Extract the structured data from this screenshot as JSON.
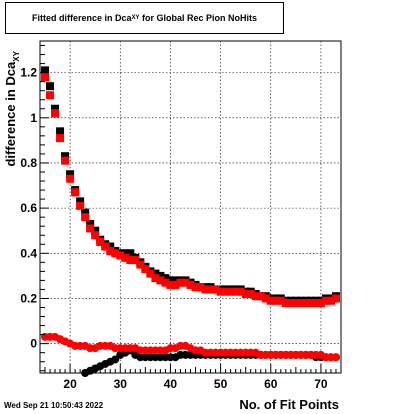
{
  "title": {
    "main": "Fitted difference in Dca",
    "sub": "XY",
    "suffix": " for Global Rec Pion NoHits"
  },
  "xlabel": "No. of Fit Points",
  "ylabel": {
    "main": "difference in Dca",
    "sub": "XY"
  },
  "timestamp": "Wed Sep 21 10:50:43 2022",
  "chart_data": {
    "type": "scatter",
    "xlim": [
      14,
      74
    ],
    "ylim": [
      -0.13,
      1.34
    ],
    "xticks": [
      20,
      30,
      40,
      50,
      60,
      70
    ],
    "yticks": [
      0,
      0.2,
      0.4,
      0.6,
      0.8,
      1,
      1.2
    ],
    "ytick_labels": [
      "0",
      "0.2",
      "0.4",
      "0.6",
      "0.8",
      "1",
      "1.2"
    ],
    "grid": true,
    "x": [
      15,
      16,
      17,
      18,
      19,
      20,
      21,
      22,
      23,
      24,
      25,
      26,
      27,
      28,
      29,
      30,
      31,
      32,
      33,
      34,
      35,
      36,
      37,
      38,
      39,
      40,
      41,
      42,
      43,
      44,
      45,
      46,
      47,
      48,
      49,
      50,
      51,
      52,
      53,
      54,
      55,
      56,
      57,
      58,
      59,
      60,
      61,
      62,
      63,
      64,
      65,
      66,
      67,
      68,
      69,
      70,
      71,
      72,
      73
    ],
    "series": [
      {
        "marker": "square",
        "color": "#000000",
        "values": [
          1.21,
          1.14,
          1.04,
          0.94,
          0.83,
          0.75,
          0.68,
          0.63,
          0.58,
          0.53,
          0.5,
          0.46,
          0.44,
          0.43,
          0.41,
          0.4,
          0.4,
          0.4,
          0.38,
          0.36,
          0.34,
          0.32,
          0.31,
          0.3,
          0.29,
          0.28,
          0.28,
          0.28,
          0.28,
          0.27,
          0.26,
          0.25,
          0.25,
          0.25,
          0.24,
          0.24,
          0.24,
          0.24,
          0.24,
          0.24,
          0.23,
          0.23,
          0.22,
          0.21,
          0.21,
          0.2,
          0.2,
          0.2,
          0.19,
          0.19,
          0.19,
          0.19,
          0.19,
          0.19,
          0.19,
          0.19,
          0.2,
          0.2,
          0.21
        ]
      },
      {
        "marker": "square",
        "color": "#ff0000",
        "values": [
          1.18,
          1.1,
          1.02,
          0.91,
          0.81,
          0.73,
          0.67,
          0.61,
          0.56,
          0.51,
          0.48,
          0.45,
          0.43,
          0.41,
          0.4,
          0.39,
          0.38,
          0.37,
          0.37,
          0.35,
          0.33,
          0.31,
          0.29,
          0.28,
          0.27,
          0.26,
          0.26,
          0.27,
          0.27,
          0.26,
          0.25,
          0.25,
          0.24,
          0.24,
          0.24,
          0.23,
          0.23,
          0.23,
          0.23,
          0.23,
          0.22,
          0.22,
          0.21,
          0.21,
          0.2,
          0.19,
          0.19,
          0.19,
          0.18,
          0.18,
          0.18,
          0.18,
          0.18,
          0.18,
          0.18,
          0.18,
          0.19,
          0.19,
          0.2
        ]
      },
      {
        "marker": "circle",
        "color": "#000000",
        "values": [
          null,
          null,
          null,
          null,
          null,
          null,
          null,
          null,
          -0.13,
          -0.12,
          -0.11,
          -0.1,
          -0.09,
          -0.08,
          -0.07,
          -0.05,
          -0.04,
          -0.03,
          -0.05,
          -0.06,
          -0.06,
          -0.06,
          -0.06,
          -0.06,
          -0.06,
          -0.06,
          -0.06,
          -0.05,
          -0.05,
          -0.05,
          -0.05,
          -0.05,
          -0.05,
          -0.05,
          -0.05,
          -0.05,
          -0.05,
          -0.05,
          -0.05,
          -0.05,
          -0.05,
          -0.05,
          -0.05,
          -0.05,
          -0.05,
          -0.05,
          -0.05,
          -0.05,
          -0.05,
          -0.05,
          -0.05,
          -0.05,
          -0.05,
          -0.05,
          -0.06,
          -0.06,
          -0.06,
          -0.06,
          -0.06
        ]
      },
      {
        "marker": "circle",
        "color": "#ff0000",
        "values": [
          0.03,
          0.03,
          0.03,
          0.02,
          0.01,
          0.0,
          -0.01,
          -0.01,
          -0.01,
          -0.02,
          -0.02,
          -0.01,
          -0.01,
          -0.01,
          -0.02,
          -0.02,
          -0.02,
          -0.02,
          -0.02,
          -0.03,
          -0.03,
          -0.03,
          -0.03,
          -0.03,
          -0.03,
          -0.02,
          -0.02,
          -0.01,
          -0.01,
          -0.02,
          -0.03,
          -0.03,
          -0.04,
          -0.04,
          -0.04,
          -0.04,
          -0.04,
          -0.04,
          -0.04,
          -0.04,
          -0.04,
          -0.04,
          -0.04,
          -0.05,
          -0.05,
          -0.05,
          -0.05,
          -0.05,
          -0.05,
          -0.05,
          -0.05,
          -0.05,
          -0.05,
          -0.05,
          -0.05,
          -0.05,
          -0.06,
          -0.06,
          -0.06
        ]
      }
    ]
  }
}
